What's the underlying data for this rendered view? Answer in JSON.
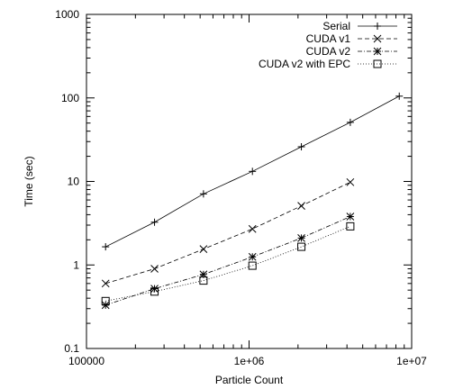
{
  "chart_data": {
    "type": "line",
    "xlabel": "Particle Count",
    "ylabel": "Time (sec)",
    "x_scale": "log",
    "y_scale": "log",
    "xlim": [
      100000,
      10000000
    ],
    "ylim": [
      0.1,
      1000
    ],
    "x_ticks": [
      {
        "value": 100000,
        "label": "100000"
      },
      {
        "value": 1000000,
        "label": "1e+06"
      },
      {
        "value": 10000000,
        "label": "1e+07"
      }
    ],
    "y_ticks": [
      {
        "value": 0.1,
        "label": "0.1"
      },
      {
        "value": 1,
        "label": "1"
      },
      {
        "value": 10,
        "label": "10"
      },
      {
        "value": 100,
        "label": "100"
      },
      {
        "value": 1000,
        "label": "1000"
      }
    ],
    "grid": false,
    "legend_position": "top-right",
    "series": [
      {
        "name": "Serial",
        "marker": "plus",
        "dash": "solid",
        "x": [
          131072,
          262144,
          524288,
          1048576,
          2097152,
          4194304,
          8388608
        ],
        "y": [
          1.65,
          3.25,
          7.1,
          13.2,
          26.0,
          51.0,
          105.0
        ]
      },
      {
        "name": "CUDA v1",
        "marker": "cross",
        "dash": "dashed",
        "x": [
          131072,
          262144,
          524288,
          1048576,
          2097152,
          4194304
        ],
        "y": [
          0.6,
          0.9,
          1.55,
          2.7,
          5.1,
          9.8
        ]
      },
      {
        "name": "CUDA v2",
        "marker": "star",
        "dash": "dash-dot",
        "x": [
          131072,
          262144,
          524288,
          1048576,
          2097152,
          4194304
        ],
        "y": [
          0.33,
          0.52,
          0.77,
          1.25,
          2.1,
          3.8
        ]
      },
      {
        "name": "CUDA v2 with EPC",
        "marker": "square",
        "dash": "dotted",
        "x": [
          131072,
          262144,
          524288,
          1048576,
          2097152,
          4194304
        ],
        "y": [
          0.37,
          0.48,
          0.65,
          0.98,
          1.65,
          2.9
        ]
      }
    ]
  }
}
